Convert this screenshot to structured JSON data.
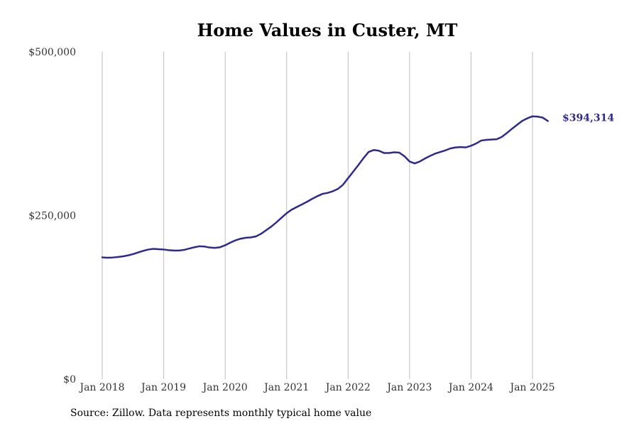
{
  "chart_data": {
    "type": "line",
    "title": "Home Values in Custer, MT",
    "xlabel": "",
    "ylabel": "",
    "source": "Source: Zillow. Data represents monthly typical home value",
    "ylim": [
      0,
      500000
    ],
    "yticks": [
      0,
      250000,
      500000
    ],
    "ytick_labels": [
      "$0",
      "$250,000",
      "$500,000"
    ],
    "xlim": [
      "2018-01",
      "2025-07"
    ],
    "xticks": [
      "2018-01",
      "2019-01",
      "2020-01",
      "2021-01",
      "2022-01",
      "2023-01",
      "2024-01",
      "2025-01"
    ],
    "xtick_labels": [
      "Jan 2018",
      "Jan 2019",
      "Jan 2020",
      "Jan 2021",
      "Jan 2022",
      "Jan 2023",
      "Jan 2024",
      "Jan 2025"
    ],
    "grid": "vertical",
    "series_color": "#2e2a8c",
    "end_label": "$394,314",
    "series": [
      {
        "name": "",
        "x": [
          "2018-01",
          "2018-02",
          "2018-03",
          "2018-04",
          "2018-05",
          "2018-06",
          "2018-07",
          "2018-08",
          "2018-09",
          "2018-10",
          "2018-11",
          "2018-12",
          "2019-01",
          "2019-02",
          "2019-03",
          "2019-04",
          "2019-05",
          "2019-06",
          "2019-07",
          "2019-08",
          "2019-09",
          "2019-10",
          "2019-11",
          "2019-12",
          "2020-01",
          "2020-02",
          "2020-03",
          "2020-04",
          "2020-05",
          "2020-06",
          "2020-07",
          "2020-08",
          "2020-09",
          "2020-10",
          "2020-11",
          "2020-12",
          "2021-01",
          "2021-02",
          "2021-03",
          "2021-04",
          "2021-05",
          "2021-06",
          "2021-07",
          "2021-08",
          "2021-09",
          "2021-10",
          "2021-11",
          "2021-12",
          "2022-01",
          "2022-02",
          "2022-03",
          "2022-04",
          "2022-05",
          "2022-06",
          "2022-07",
          "2022-08",
          "2022-09",
          "2022-10",
          "2022-11",
          "2022-12",
          "2023-01",
          "2023-02",
          "2023-03",
          "2023-04",
          "2023-05",
          "2023-06",
          "2023-07",
          "2023-08",
          "2023-09",
          "2023-10",
          "2023-11",
          "2023-12",
          "2024-01",
          "2024-02",
          "2024-03",
          "2024-04",
          "2024-05",
          "2024-06",
          "2024-07",
          "2024-08",
          "2024-09",
          "2024-10",
          "2024-11",
          "2024-12",
          "2025-01",
          "2025-02",
          "2025-03",
          "2025-04"
        ],
        "y": [
          186000,
          185500,
          185800,
          186500,
          187500,
          189000,
          191000,
          193500,
          196000,
          198000,
          199000,
          198500,
          198000,
          197000,
          196500,
          196500,
          197500,
          199500,
          201500,
          203000,
          202500,
          201000,
          200500,
          201500,
          204500,
          208500,
          212000,
          214500,
          216000,
          216500,
          218000,
          222000,
          227500,
          233000,
          239500,
          246500,
          253500,
          259000,
          263000,
          267000,
          271000,
          275500,
          279500,
          283000,
          284500,
          287000,
          290500,
          297000,
          307000,
          317000,
          327000,
          337500,
          347000,
          350000,
          349000,
          345500,
          345500,
          346500,
          346000,
          340500,
          332500,
          329500,
          332500,
          337000,
          341000,
          344500,
          347000,
          349500,
          352500,
          354000,
          354500,
          354000,
          356500,
          360000,
          364500,
          365500,
          366000,
          366500,
          370000,
          376000,
          382500,
          388500,
          394500,
          398500,
          401500,
          401000,
          399500,
          394314
        ]
      }
    ]
  }
}
